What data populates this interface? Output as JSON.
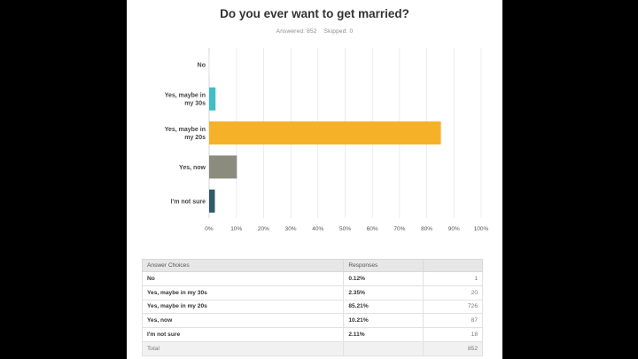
{
  "title": "Do you ever want to get married?",
  "stats": {
    "answered": "Answered: 852",
    "skipped": "Skipped: 0"
  },
  "chart_data": {
    "type": "bar",
    "orientation": "horizontal",
    "categories": [
      "No",
      "Yes, maybe in my 30s",
      "Yes, maybe in my 20s",
      "Yes, now",
      "I'm not sure"
    ],
    "category_lines": [
      [
        "No"
      ],
      [
        "Yes, maybe in",
        "my 30s"
      ],
      [
        "Yes, maybe in",
        "my 20s"
      ],
      [
        "Yes, now"
      ],
      [
        "I'm not sure"
      ]
    ],
    "values": [
      0.12,
      2.35,
      85.21,
      10.21,
      2.11
    ],
    "colors": [
      "#e8e8e8",
      "#3fbec8",
      "#f5b228",
      "#8b8b7e",
      "#2f5a6c"
    ],
    "xlim": [
      0,
      100
    ],
    "ticks": [
      "0%",
      "10%",
      "20%",
      "30%",
      "40%",
      "50%",
      "60%",
      "70%",
      "80%",
      "90%",
      "100%"
    ],
    "grid": true
  },
  "table": {
    "headers": [
      "Answer Choices",
      "Responses",
      ""
    ],
    "rows": [
      [
        "No",
        "0.12%",
        "1"
      ],
      [
        "Yes, maybe in my 30s",
        "2.35%",
        "20"
      ],
      [
        "Yes, maybe in my 20s",
        "85.21%",
        "726"
      ],
      [
        "Yes, now",
        "10.21%",
        "87"
      ],
      [
        "I'm not sure",
        "2.11%",
        "18"
      ]
    ],
    "total": [
      "Total",
      "",
      "852"
    ]
  }
}
